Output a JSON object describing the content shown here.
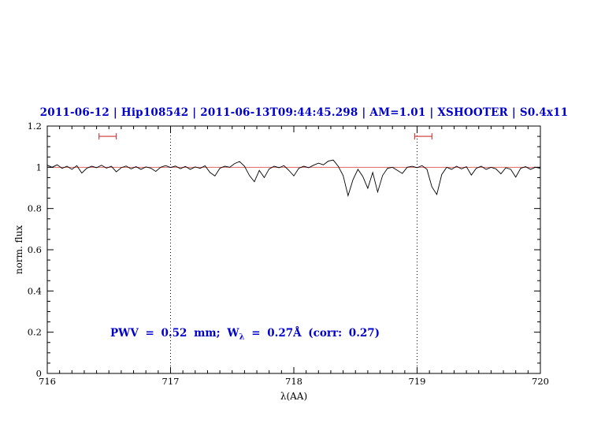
{
  "title": "2011-06-12 | Hip108542 | 2011-06-13T09:44:45.298 | AM=1.01 | XSHOOTER | S0.4x11",
  "annotation": {
    "prefix": "PWV = 0.52 mm; W",
    "sub": "λ",
    "suffix": " = 0.27Å (corr: 0.27)"
  },
  "colors": {
    "title_blue": "#0000cc",
    "marker_red": "#cc3333",
    "continuum_red": "#dd6666",
    "spectrum_black": "#000000"
  },
  "chart_data": {
    "type": "line",
    "title": "2011-06-12 | Hip108542 | 2011-06-13T09:44:45.298 | AM=1.01 | XSHOOTER | S0.4x11",
    "xlabel": "λ(AA)",
    "ylabel": "norm. flux",
    "xlim": [
      716,
      720
    ],
    "ylim": [
      0,
      1.2
    ],
    "xticks": [
      716,
      717,
      718,
      719,
      720
    ],
    "xtick_labels": [
      "716",
      "717",
      "718",
      "719",
      "720"
    ],
    "yticks": [
      0,
      0.2,
      0.4,
      0.6,
      0.8,
      1,
      1.2
    ],
    "ytick_labels": [
      "0",
      "0.2",
      "0.4",
      "0.6",
      "0.8",
      "1",
      "1.2"
    ],
    "x_minor_step": 0.1,
    "y_minor_step": 0.05,
    "grid": false,
    "legend": null,
    "dotted_vlines": [
      717,
      719
    ],
    "continuum_y": 1.0,
    "markers": [
      {
        "x1": 716.42,
        "x2": 716.56,
        "y": 1.15
      },
      {
        "x1": 718.98,
        "x2": 719.12,
        "y": 1.15
      }
    ],
    "series": [
      {
        "name": "spectrum",
        "x_start": 716.0,
        "x_step": 0.04,
        "y": [
          1.01,
          1.0,
          1.012,
          0.995,
          1.005,
          0.99,
          1.008,
          0.972,
          0.995,
          1.005,
          0.998,
          1.01,
          0.996,
          1.005,
          0.978,
          0.998,
          1.006,
          0.992,
          1.003,
          0.99,
          1.002,
          0.996,
          0.98,
          1.0,
          1.008,
          0.999,
          1.006,
          0.993,
          1.004,
          0.99,
          1.002,
          0.995,
          1.007,
          0.975,
          0.958,
          0.995,
          1.005,
          1.0,
          1.018,
          1.028,
          1.005,
          0.96,
          0.93,
          0.985,
          0.95,
          0.992,
          1.005,
          0.998,
          1.008,
          0.985,
          0.958,
          0.995,
          1.005,
          0.998,
          1.01,
          1.02,
          1.012,
          1.03,
          1.035,
          1.005,
          0.96,
          0.862,
          0.94,
          0.99,
          0.955,
          0.898,
          0.975,
          0.88,
          0.96,
          0.995,
          1.0,
          0.985,
          0.97,
          1.0,
          1.005,
          0.998,
          1.008,
          0.99,
          0.905,
          0.868,
          0.965,
          1.0,
          0.99,
          1.005,
          0.992,
          1.003,
          0.962,
          0.995,
          1.005,
          0.99,
          1.0,
          0.992,
          0.968,
          0.998,
          0.99,
          0.952,
          0.995,
          1.003,
          0.99,
          1.0,
          0.995
        ]
      }
    ]
  }
}
